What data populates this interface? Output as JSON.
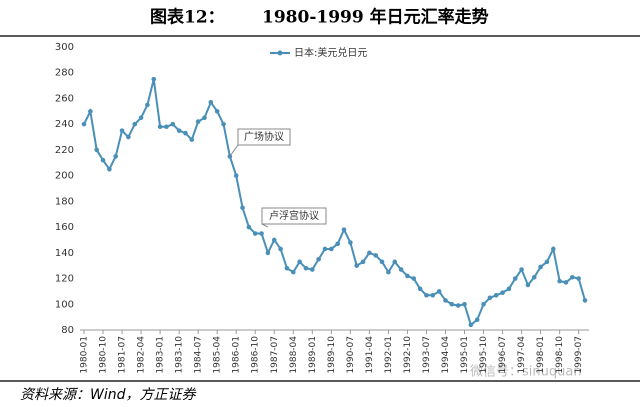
{
  "chart_data": {
    "type": "line",
    "title_label": "图表12：",
    "title": "1980-1999 年日元汇率走势",
    "source": "资料来源：Wind，方正证券",
    "watermark": "微信号：sinuquan",
    "categories": [
      "1980-01",
      null,
      null,
      "1980-10",
      null,
      null,
      "1981-07",
      null,
      null,
      "1982-04",
      null,
      null,
      "1983-01",
      null,
      null,
      "1983-10",
      null,
      null,
      "1984-07",
      null,
      null,
      "1985-04",
      null,
      null,
      "1986-01",
      null,
      null,
      "1986-10",
      null,
      null,
      "1987-07",
      null,
      null,
      "1988-04",
      null,
      null,
      "1989-01",
      null,
      null,
      "1989-10",
      null,
      null,
      "1990-07",
      null,
      null,
      "1991-04",
      null,
      null,
      "1992-01",
      null,
      null,
      "1992-10",
      null,
      null,
      "1993-07",
      null,
      null,
      "1994-04",
      null,
      null,
      "1995-01",
      null,
      null,
      "1995-10",
      null,
      null,
      "1996-07",
      null,
      null,
      "1997-04",
      null,
      null,
      "1998-01",
      null,
      null,
      "1998-10",
      null,
      null,
      "1999-07",
      null
    ],
    "series": [
      {
        "name": "日本:美元兑日元",
        "color": "#4a8fb8",
        "values": [
          240,
          250,
          220,
          212,
          205,
          215,
          235,
          230,
          240,
          245,
          255,
          275,
          238,
          238,
          240,
          235,
          233,
          228,
          242,
          245,
          257,
          250,
          240,
          215,
          200,
          175,
          160,
          155,
          155,
          140,
          150,
          143,
          128,
          125,
          133,
          128,
          127,
          135,
          143,
          143,
          147,
          158,
          148,
          130,
          133,
          140,
          138,
          133,
          125,
          133,
          127,
          122,
          120,
          112,
          107,
          107,
          110,
          103,
          100,
          99,
          100,
          84,
          88,
          100,
          105,
          107,
          109,
          112,
          120,
          127,
          115,
          121,
          129,
          133,
          143,
          118,
          117,
          121,
          120,
          103
        ]
      }
    ],
    "ylim": [
      80,
      300
    ],
    "yticks": [
      80,
      100,
      120,
      140,
      160,
      180,
      200,
      220,
      240,
      260,
      280,
      300
    ],
    "grid": false,
    "legend": "top",
    "annotations": [
      {
        "text": "广场协议"
      },
      {
        "text": "卢浮宫协议"
      }
    ]
  }
}
